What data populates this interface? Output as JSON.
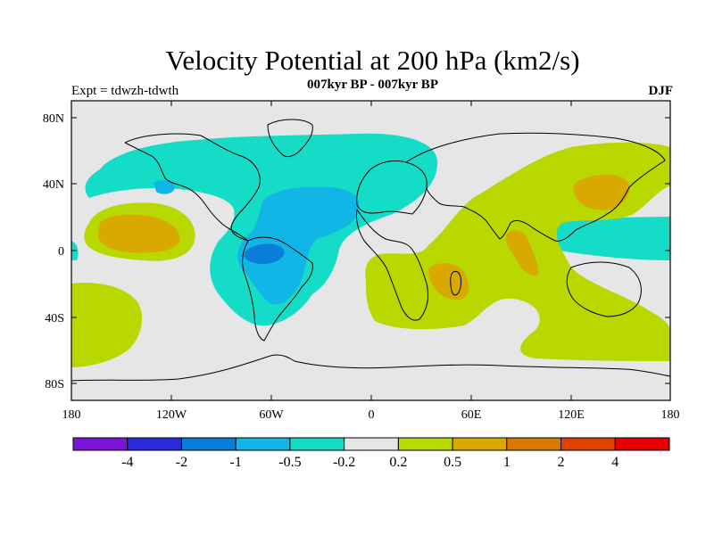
{
  "header": {
    "title": "Velocity Potential at 200 hPa (km2/s)",
    "subtitle": "007kyr BP - 007kyr BP",
    "left_label": "Expt = tdwzh-tdwth",
    "right_label": "DJF"
  },
  "axes": {
    "lat_ticks": [
      "80N",
      "40N",
      "0",
      "40S",
      "80S"
    ],
    "lon_ticks": [
      "180",
      "120W",
      "60W",
      "0",
      "60E",
      "120E",
      "180"
    ]
  },
  "colorbar": {
    "colors": [
      "#7b14d9",
      "#2a2ad8",
      "#0a7dd8",
      "#11b6e6",
      "#14dcc6",
      "#e6e6e6",
      "#b8d800",
      "#d8aa00",
      "#d87a00",
      "#e04000",
      "#e60000"
    ],
    "labels": [
      "-4",
      "-2",
      "-1",
      "-0.5",
      "-0.2",
      "0.2",
      "0.5",
      "1",
      "2",
      "4"
    ]
  }
}
